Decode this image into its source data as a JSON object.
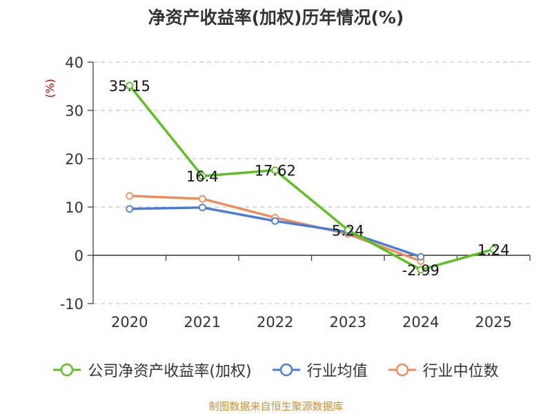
{
  "chart_data": {
    "type": "line",
    "title": "净资产收益率(加权)历年情况(%)",
    "ylabel": "(%)",
    "xlabel": "",
    "ylim": [
      -10,
      40
    ],
    "yticks": [
      -10,
      0,
      10,
      20,
      30,
      40
    ],
    "categories": [
      "2020",
      "2021",
      "2022",
      "2023",
      "2024",
      "2025"
    ],
    "grid": true,
    "legend_position": "bottom",
    "series": [
      {
        "name": "公司净资产收益率(加权)",
        "color": "#5dbf20",
        "values": [
          35.15,
          16.4,
          17.62,
          5.24,
          -2.99,
          1.24
        ],
        "labels": [
          "35.15",
          "16.4",
          "17.62",
          "5.24",
          "-2.99",
          "1.24"
        ]
      },
      {
        "name": "行业均值",
        "color": "#4a7bd6",
        "values": [
          9.6,
          9.9,
          7.1,
          4.8,
          -0.3,
          null
        ],
        "labels": null
      },
      {
        "name": "行业中位数",
        "color": "#f08c5a",
        "values": [
          12.3,
          11.7,
          7.8,
          4.4,
          -1.2,
          null
        ],
        "labels": null
      }
    ]
  },
  "source_note": "制图数据来自恒生聚源数据库",
  "ylabel_color": "#cc0000"
}
